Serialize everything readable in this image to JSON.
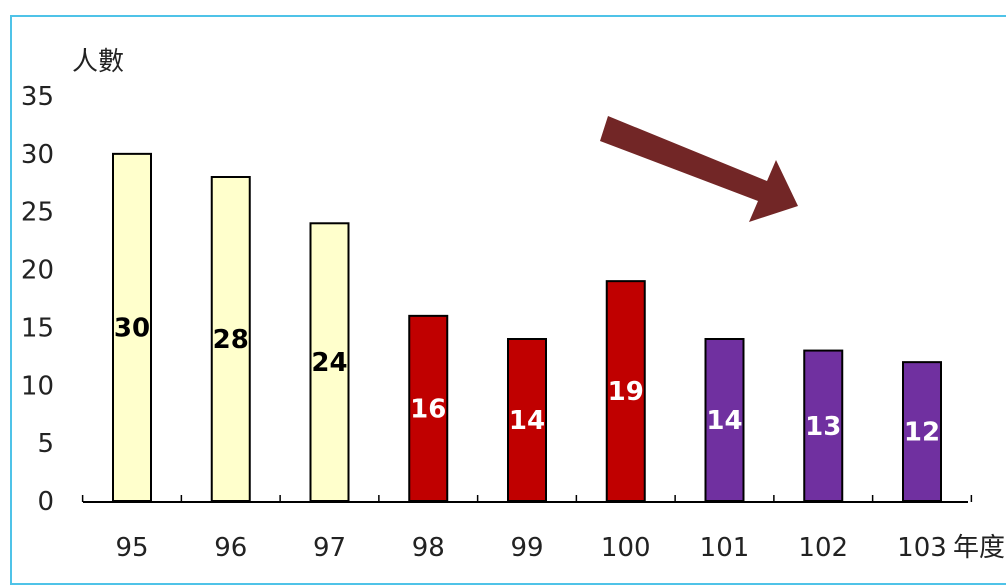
{
  "chart_data": {
    "type": "bar",
    "ylabel": "人數",
    "xlabel": "年度",
    "ylim": [
      0,
      35
    ],
    "yticks": [
      "0",
      "5",
      "10",
      "15",
      "20",
      "25",
      "30",
      "35"
    ],
    "categories": [
      "95",
      "96",
      "97",
      "98",
      "99",
      "100",
      "101",
      "102",
      "103"
    ],
    "values": [
      30,
      28,
      24,
      16,
      14,
      19,
      14,
      13,
      12
    ],
    "bar_colors": [
      "#ffffcc",
      "#ffffcc",
      "#ffffcc",
      "#c00000",
      "#c00000",
      "#c00000",
      "#7030a0",
      "#7030a0",
      "#7030a0"
    ],
    "label_colors": [
      "#000000",
      "#000000",
      "#000000",
      "#ffffff",
      "#ffffff",
      "#ffffff",
      "#ffffff",
      "#ffffff",
      "#ffffff"
    ],
    "grid": false,
    "annotation": {
      "shape": "arrow",
      "direction": "down-right",
      "color": "#722626"
    }
  },
  "frame": {
    "border_color": "#4fc3e8"
  }
}
